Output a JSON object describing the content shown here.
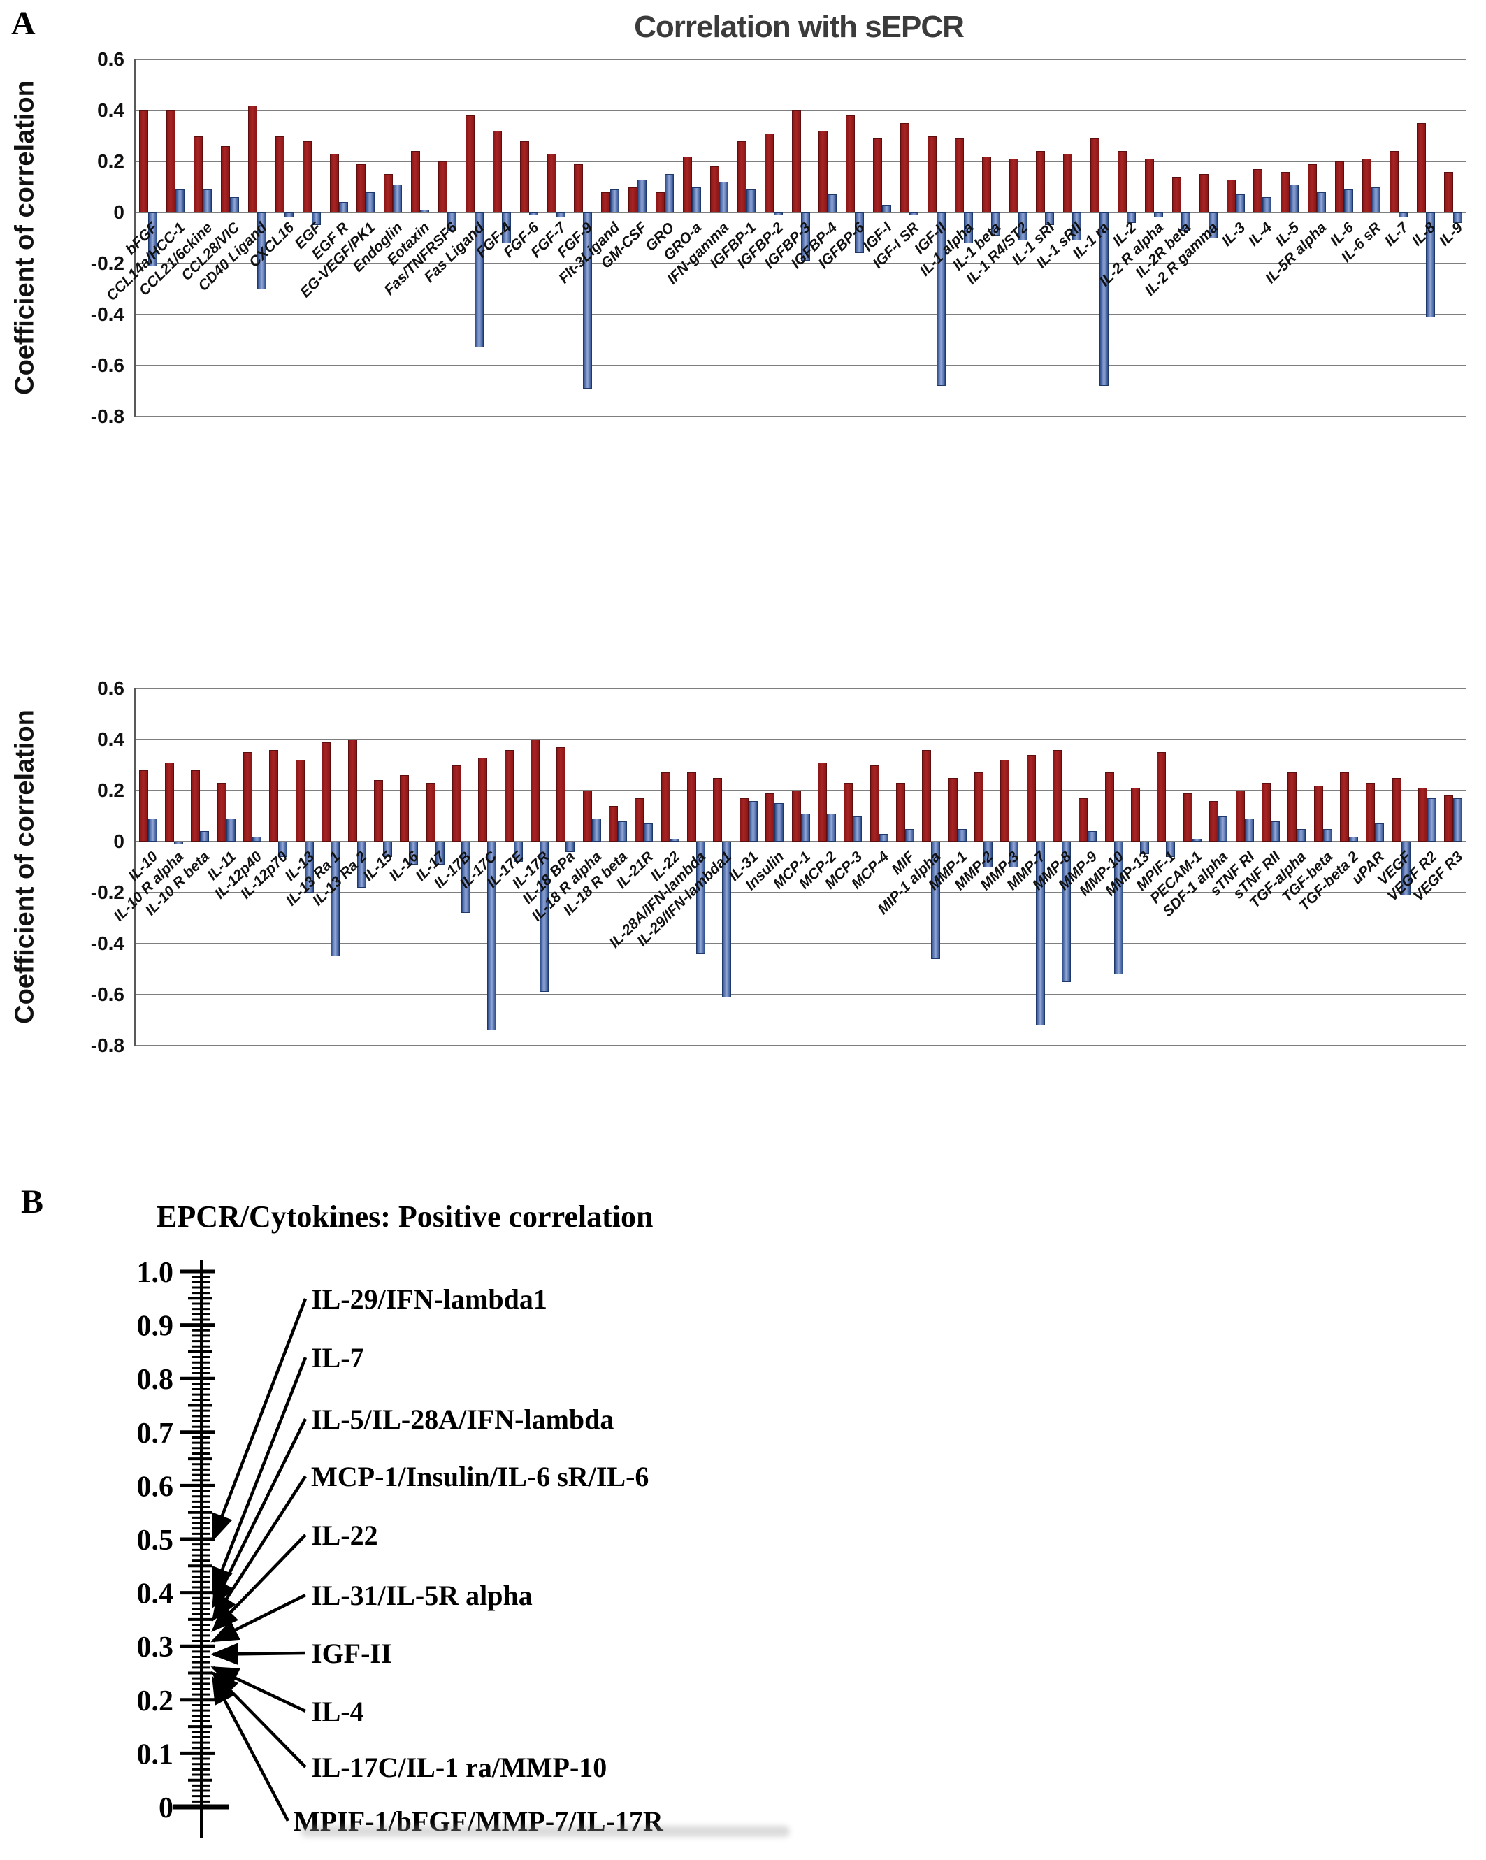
{
  "panel_a": {
    "label": "A",
    "title": "Correlation with sEPCR",
    "y_axis_label": "Coefficient of correlation",
    "y_tick_labels": [
      "0.6",
      "0.4",
      "0.2",
      "0",
      "-0.2",
      "-0.4",
      "-0.6",
      "-0.8"
    ]
  },
  "panel_b": {
    "label": "B",
    "title": "EPCR/Cytokines: Positive correlation",
    "scale_tick_labels": [
      "1.0",
      "0.9",
      "0.8",
      "0.7",
      "0.6",
      "0.5",
      "0.4",
      "0.3",
      "0.2",
      "0.1",
      "0"
    ],
    "entries": [
      {
        "label": "IL-29/IFN-lambda1",
        "value": 0.5
      },
      {
        "label": "IL-7",
        "value": 0.4
      },
      {
        "label": "IL-5/IL-28A/IFN-lambda",
        "value": 0.375
      },
      {
        "label": "MCP-1/Insulin/IL-6 sR/IL-6",
        "value": 0.35
      },
      {
        "label": "IL-22",
        "value": 0.33
      },
      {
        "label": "IL-31/IL-5R alpha",
        "value": 0.31
      },
      {
        "label": "IGF-II",
        "value": 0.285
      },
      {
        "label": "IL-4",
        "value": 0.26
      },
      {
        "label": "IL-17C/IL-1 ra/MMP-10",
        "value": 0.25
      },
      {
        "label": "MPIF-1/bFGF/MMP-7/IL-17R",
        "value": 0.24
      }
    ]
  },
  "colors": {
    "red_series": "#9e1f1f",
    "blue_series": "#4f6cab",
    "gridline": "#7f7f7f",
    "axis": "#595959",
    "title_text": "#3b3b3b",
    "text": "#111111"
  },
  "chart_data": [
    {
      "type": "bar",
      "title": "Correlation with sEPCR",
      "xlabel": "",
      "ylabel": "Coefficient of correlation",
      "ylim": [
        -0.8,
        0.6
      ],
      "grid": true,
      "legend_position": "none",
      "categories": [
        "bFGF",
        "CCL14a/HCC-1",
        "CCL21/6ckine",
        "CCL28/VIC",
        "CD40 Ligand",
        "CXCL16",
        "EGF",
        "EGF R",
        "EG-VEGF/PK1",
        "Endoglin",
        "Eotaxin",
        "Fas/TNFRSF6",
        "Fas Ligand",
        "FGF-4",
        "FGF-6",
        "FGF-7",
        "FGF-9",
        "Flt-3Ligand",
        "GM-CSF",
        "GRO",
        "GRO-a",
        "IFN-gamma",
        "IGFBP-1",
        "IGFBP-2",
        "IGFBP-3",
        "IGFBP-4",
        "IGFBP-6",
        "IGF-I",
        "IGF-I SR",
        "IGF-II",
        "IL-1 alpha",
        "IL-1 beta",
        "IL-1 R4/ST2",
        "IL-1 sRI",
        "IL-1 sRII",
        "IL-1 ra",
        "IL-2",
        "IL-2 R alpha",
        "IL-2R beta",
        "IL-2 R gamma",
        "IL-3",
        "IL-4",
        "IL-5",
        "IL-5R alpha",
        "IL-6",
        "IL-6 sR",
        "IL-7",
        "IL-8",
        "IL-9"
      ],
      "series": [
        {
          "name": "red-series",
          "color": "#9e1f1f",
          "values": [
            0.4,
            0.4,
            0.3,
            0.26,
            0.42,
            0.3,
            0.28,
            0.23,
            0.19,
            0.15,
            0.24,
            0.2,
            0.38,
            0.32,
            0.28,
            0.23,
            0.19,
            0.08,
            0.1,
            0.08,
            0.22,
            0.18,
            0.28,
            0.31,
            0.4,
            0.32,
            0.38,
            0.29,
            0.35,
            0.3,
            0.29,
            0.22,
            0.21,
            0.24,
            0.23,
            0.29,
            0.24,
            0.21,
            0.14,
            0.15,
            0.13,
            0.17,
            0.16,
            0.19,
            0.2,
            0.21,
            0.24,
            0.35,
            0.16
          ]
        },
        {
          "name": "blue-series",
          "color": "#4f6cab",
          "values": [
            -0.21,
            0.09,
            0.09,
            0.06,
            -0.3,
            -0.02,
            -0.05,
            0.04,
            0.08,
            0.11,
            0.01,
            -0.07,
            -0.53,
            -0.12,
            -0.01,
            -0.02,
            -0.69,
            0.09,
            0.13,
            0.15,
            0.1,
            0.12,
            0.09,
            -0.01,
            -0.19,
            0.07,
            -0.16,
            0.03,
            -0.01,
            -0.68,
            -0.12,
            -0.09,
            -0.11,
            -0.05,
            -0.11,
            -0.68,
            -0.04,
            -0.02,
            -0.07,
            -0.1,
            0.07,
            0.06,
            0.11,
            0.08,
            0.09,
            0.1,
            -0.02,
            -0.41,
            -0.04
          ]
        }
      ]
    },
    {
      "type": "bar",
      "title": "",
      "xlabel": "",
      "ylabel": "Coefficient of correlation",
      "ylim": [
        -0.8,
        0.6
      ],
      "grid": true,
      "legend_position": "none",
      "categories": [
        "IL-10",
        "IL-10 R alpha",
        "IL-10 R beta",
        "IL-11",
        "IL-12p40",
        "IL-12p70",
        "IL-13",
        "IL-13 Ra 1",
        "IL-13 Ra 2",
        "IL-15",
        "IL-16",
        "IL-17",
        "IL-17B",
        "IL-17C",
        "IL-17E",
        "IL-17R",
        "IL-18 BPa",
        "IL-18 R alpha",
        "IL-18 R beta",
        "IL-21R",
        "IL-22",
        "IL-28A/IFN-lambda",
        "IL-29/IFN-lambda1",
        "IL-31",
        "Insulin",
        "MCP-1",
        "MCP-2",
        "MCP-3",
        "MCP-4",
        "MIF",
        "MIP-1 alpha",
        "MMP-1",
        "MMP-2",
        "MMP-3",
        "MMP-7",
        "MMP-8",
        "MMP-9",
        "MMP-10",
        "MMP-13",
        "MPIF-1",
        "PECAM-1",
        "SDF-1 alpha",
        "sTNF RI",
        "sTNF RII",
        "TGF-alpha",
        "TGF-beta",
        "TGF-beta 2",
        "uPAR",
        "VEGF",
        "VEGF R2",
        "VEGF R3"
      ],
      "series": [
        {
          "name": "red-series",
          "color": "#9e1f1f",
          "values": [
            0.28,
            0.31,
            0.28,
            0.23,
            0.35,
            0.36,
            0.32,
            0.39,
            0.4,
            0.24,
            0.26,
            0.23,
            0.3,
            0.33,
            0.36,
            0.4,
            0.37,
            0.2,
            0.14,
            0.17,
            0.27,
            0.27,
            0.25,
            0.17,
            0.19,
            0.2,
            0.31,
            0.23,
            0.3,
            0.23,
            0.36,
            0.25,
            0.27,
            0.32,
            0.34,
            0.36,
            0.17,
            0.27,
            0.21,
            0.35,
            0.19,
            0.16,
            0.2,
            0.23,
            0.27,
            0.22,
            0.27,
            0.23,
            0.25,
            0.21,
            0.18
          ]
        },
        {
          "name": "blue-series",
          "color": "#4f6cab",
          "values": [
            0.09,
            -0.01,
            0.04,
            0.09,
            0.02,
            -0.06,
            -0.2,
            -0.45,
            -0.18,
            -0.06,
            -0.09,
            -0.09,
            -0.28,
            -0.74,
            -0.08,
            -0.59,
            -0.04,
            0.09,
            0.08,
            0.07,
            0.01,
            -0.44,
            -0.61,
            0.16,
            0.15,
            0.11,
            0.11,
            0.1,
            0.03,
            0.05,
            -0.46,
            0.05,
            -0.1,
            -0.1,
            -0.72,
            -0.55,
            0.04,
            -0.52,
            -0.05,
            -0.06,
            0.01,
            0.1,
            0.09,
            0.08,
            0.05,
            0.05,
            0.02,
            0.07,
            -0.21,
            0.17,
            0.17
          ]
        }
      ]
    },
    {
      "type": "scale-callouts",
      "title": "EPCR/Cytokines: Positive correlation",
      "axis_range": [
        0,
        1.0
      ],
      "points": [
        {
          "label": "IL-29/IFN-lambda1",
          "value": 0.5
        },
        {
          "label": "IL-7",
          "value": 0.4
        },
        {
          "label": "IL-5/IL-28A/IFN-lambda",
          "value": 0.375
        },
        {
          "label": "MCP-1/Insulin/IL-6 sR/IL-6",
          "value": 0.35
        },
        {
          "label": "IL-22",
          "value": 0.33
        },
        {
          "label": "IL-31/IL-5R alpha",
          "value": 0.31
        },
        {
          "label": "IGF-II",
          "value": 0.285
        },
        {
          "label": "IL-4",
          "value": 0.26
        },
        {
          "label": "IL-17C/IL-1 ra/MMP-10",
          "value": 0.25
        },
        {
          "label": "MPIF-1/bFGF/MMP-7/IL-17R",
          "value": 0.24
        }
      ]
    }
  ]
}
